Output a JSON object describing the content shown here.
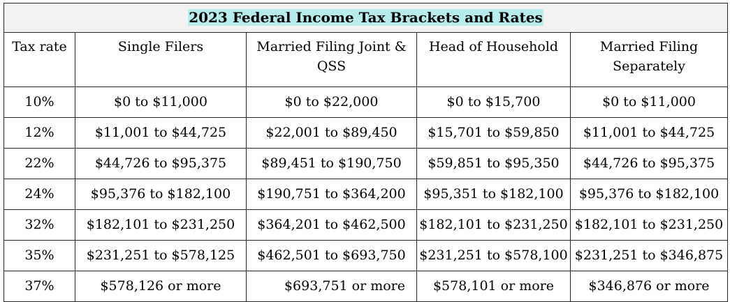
{
  "title": "2023 Federal Income Tax Brackets and Rates",
  "columns": {
    "rate": "Tax rate",
    "single": "Single Filers",
    "mfj": "Married Filing Joint & QSS",
    "hoh": "Head of Household",
    "mfs": "Married Filing Separately"
  },
  "rows": [
    {
      "rate": "10%",
      "single": "$0 to $11,000",
      "mfj": "$0 to $22,000",
      "hoh": "$0 to $15,700",
      "mfs": "$0 to $11,000"
    },
    {
      "rate": "12%",
      "single": "$11,001 to $44,725",
      "mfj": "$22,001 to $89,450",
      "hoh": "$15,701 to $59,850",
      "mfs": "$11,001 to $44,725"
    },
    {
      "rate": "22%",
      "single": "$44,726 to $95,375",
      "mfj": "$89,451 to $190,750",
      "hoh": "$59,851 to $95,350",
      "mfs": "$44,726 to $95,375"
    },
    {
      "rate": "24%",
      "single": "$95,376 to $182,100",
      "mfj": "$190,751 to $364,200",
      "hoh": "$95,351 to $182,100",
      "mfs": "$95,376 to $182,100"
    },
    {
      "rate": "32%",
      "single": "$182,101 to $231,250",
      "mfj": "$364,201 to $462,500",
      "hoh": "$182,101 to $231,250",
      "mfs": "$182,101 to $231,250"
    },
    {
      "rate": "35%",
      "single": "$231,251 to $578,125",
      "mfj": "$462,501 to $693,750",
      "hoh": "$231,251 to $578,100",
      "mfs": "$231,251 to $346,875"
    },
    {
      "rate": "37%",
      "single": "$578,126 or more",
      "mfj": "$693,751 or more",
      "hoh": "$578,101 or more",
      "mfs": "$346,876 or more"
    }
  ]
}
